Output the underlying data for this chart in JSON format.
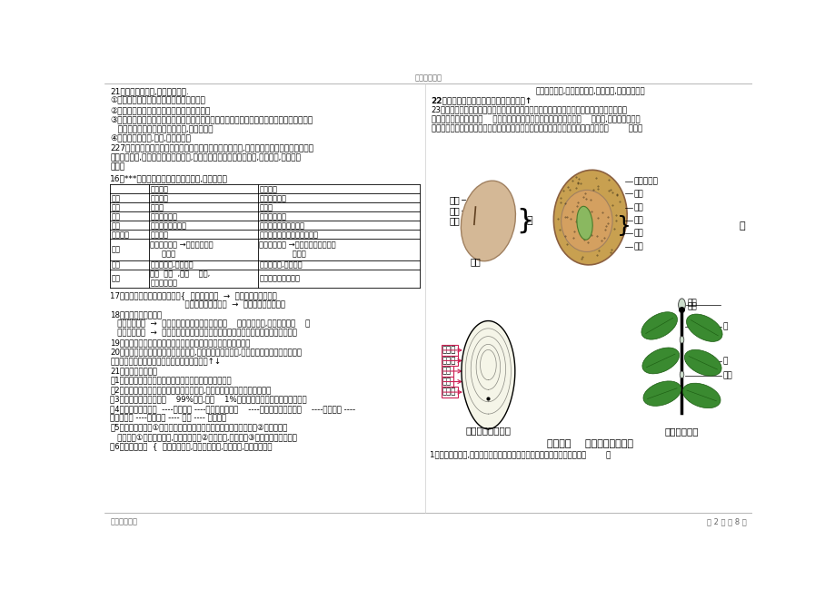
{
  "page_bg": "#ffffff",
  "top_center_text": "精选学习资料",
  "bottom_left_text": "名师归纳总结",
  "bottom_right_text": "第 2 页 共 8 页"
}
